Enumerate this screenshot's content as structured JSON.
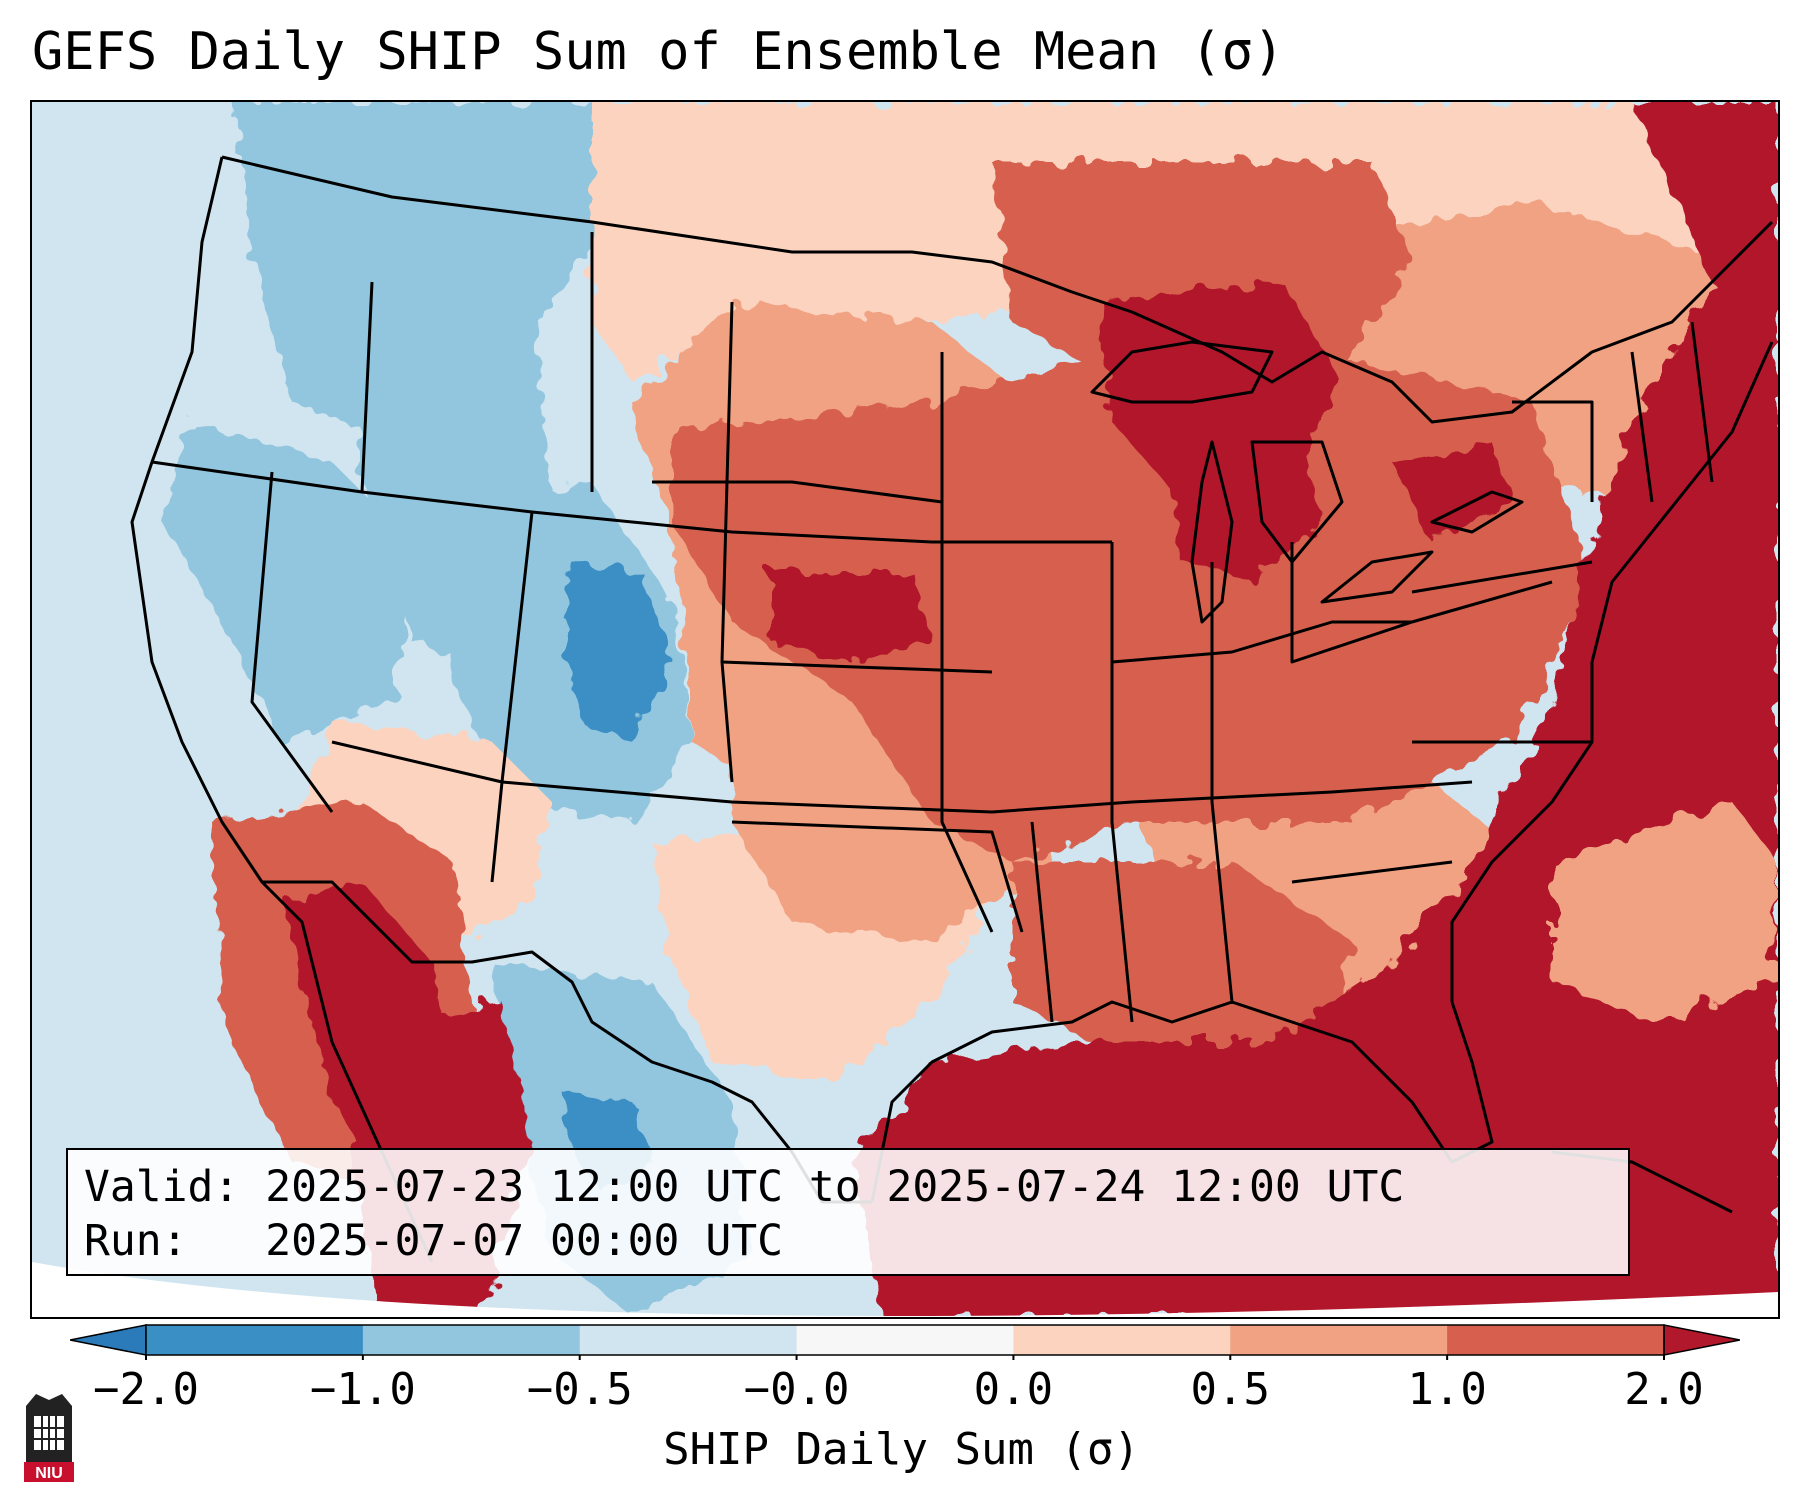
{
  "title": "GEFS Daily SHIP Sum of Ensemble Mean (σ)",
  "info": {
    "valid_line": "Valid: 2025-07-23 12:00 UTC to 2025-07-24 12:00 UTC",
    "run_line": "Run:   2025-07-07 00:00 UTC"
  },
  "colorbar": {
    "label": "SHIP Daily Sum (σ)",
    "ticks": [
      "−2.0",
      "−1.0",
      "−0.5",
      "−0.0",
      "0.0",
      "0.5",
      "1.0",
      "2.0"
    ],
    "colors": [
      "#2b7bba",
      "#3a8fc4",
      "#92c5de",
      "#d1e5f0",
      "#f7f7f7",
      "#fbd3bf",
      "#f0a283",
      "#d6604d",
      "#b2182b"
    ]
  },
  "logo": {
    "text": "NIU"
  }
}
